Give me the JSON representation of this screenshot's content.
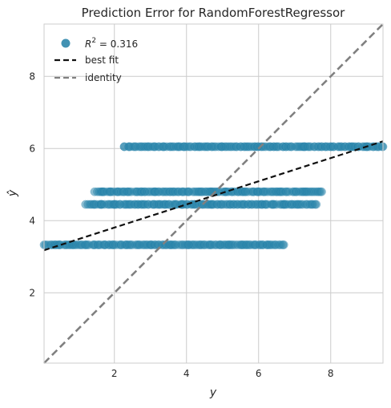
{
  "chart_data": {
    "type": "scatter",
    "title": "Prediction Error for RandomForestRegressor",
    "xlabel": "y",
    "ylabel": "ŷ",
    "xlim": [
      0.05,
      9.45
    ],
    "ylim": [
      0.05,
      9.45
    ],
    "xticks": [
      2,
      4,
      6,
      8
    ],
    "yticks": [
      2,
      4,
      6,
      8
    ],
    "grid": true,
    "legend_position": "top-left",
    "legend": {
      "r2_prefix": "R",
      "r2_sup": "2",
      "r2_value": " = 0.316",
      "best_fit_label": "best fit",
      "identity_label": "identity"
    },
    "colors": {
      "points": "#006aa0",
      "best_fit": "#111111",
      "identity": "#808080"
    },
    "series": [
      {
        "y_hat": 6.05,
        "x_min": 2.27,
        "x_max": 9.45,
        "point_density": "dense"
      },
      {
        "y_hat": 4.8,
        "x_min": 1.45,
        "x_max": 7.75,
        "point_density": "dense"
      },
      {
        "y_hat": 4.45,
        "x_min": 1.2,
        "x_max": 7.6,
        "point_density": "dense"
      },
      {
        "y_hat": 3.33,
        "x_min": 0.05,
        "x_max": 6.7,
        "point_density": "dense"
      }
    ],
    "best_fit": {
      "x": [
        0.05,
        9.45
      ],
      "y": [
        3.18,
        6.2
      ]
    },
    "identity": {
      "x": [
        0.05,
        9.45
      ],
      "y": [
        0.05,
        9.45
      ]
    }
  }
}
